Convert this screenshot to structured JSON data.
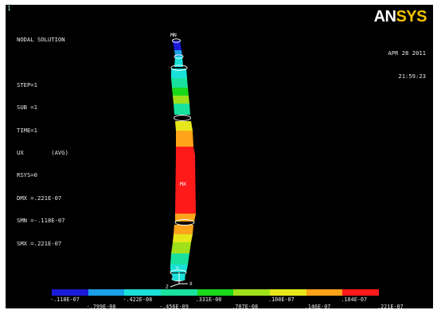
{
  "window_number": "1",
  "logo": {
    "part1": "AN",
    "part2": "SYS"
  },
  "info_lines": [
    "NODAL SOLUTION",
    "",
    "STEP=1",
    "SUB =1",
    "TIME=1",
    "UX        (AVG)",
    "RSYS=0",
    "DMX =.221E-07",
    "SMN =-.118E-07",
    "SMX =.221E-07"
  ],
  "date": "APR 28 2011",
  "time": "21:59:23",
  "markers": {
    "mn": "MN",
    "mx": "MX"
  },
  "axis_labels": {
    "x": "X",
    "y": "Y",
    "z": "Z"
  },
  "legend": {
    "colors": [
      "#1a1ad8",
      "#1aa0e6",
      "#19e0d8",
      "#19e19e",
      "#1ad81a",
      "#9fe01a",
      "#e6e61a",
      "#ffa31a",
      "#ff1a1a"
    ],
    "labels_top": [
      "-.118E-07",
      "-.422E-08",
      ".331E-08",
      ".108E-07",
      ".184E-07"
    ],
    "labels_bottom": [
      "-.799E-08",
      "-.456E-09",
      ".707E-08",
      ".146E-07",
      ".221E-07"
    ]
  },
  "colors": {
    "background": "#000000",
    "text": "#e8e8e8",
    "logo_yellow": "#f2c100"
  }
}
